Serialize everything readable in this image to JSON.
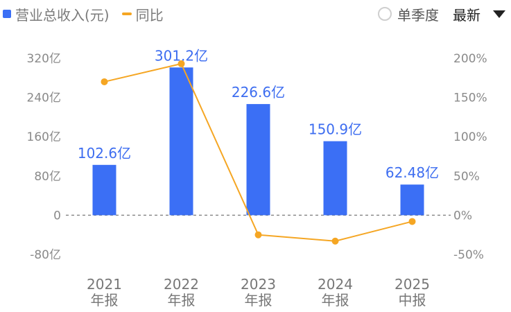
{
  "legend": {
    "revenue_label": "营业总收入(元)",
    "yoy_label": "同比"
  },
  "controls": {
    "quarterly_label": "单季度",
    "sort_label": "最新"
  },
  "colors": {
    "bar": "#3b6ff5",
    "line": "#f5a623",
    "label": "#3d6df0"
  },
  "chart_data": {
    "type": "bar",
    "categories": [
      [
        "2021",
        "年报"
      ],
      [
        "2022",
        "年报"
      ],
      [
        "2023",
        "年报"
      ],
      [
        "2024",
        "年报"
      ],
      [
        "2025",
        "中报"
      ]
    ],
    "series": [
      {
        "name": "营业总收入(元)",
        "type": "bar",
        "axis": "left",
        "values": [
          102.6,
          301.2,
          226.6,
          150.9,
          62.48
        ],
        "labels": [
          "102.6亿",
          "301.2亿",
          "226.6亿",
          "150.9亿",
          "62.48亿"
        ]
      },
      {
        "name": "同比",
        "type": "line",
        "axis": "right",
        "values": [
          170,
          193,
          -25,
          -33,
          -8
        ]
      }
    ],
    "left_axis": {
      "ticks": [
        320,
        240,
        160,
        80,
        0,
        -80
      ],
      "tick_labels": [
        "320亿",
        "240亿",
        "160亿",
        "80亿",
        "0",
        "-80亿"
      ],
      "ylim": [
        -80,
        320
      ]
    },
    "right_axis": {
      "ticks": [
        200,
        150,
        100,
        50,
        0,
        -50
      ],
      "tick_labels": [
        "200%",
        "150%",
        "100%",
        "50%",
        "0%",
        "-50%"
      ],
      "ylim": [
        -50,
        200
      ]
    },
    "zero_line": "dashed"
  }
}
